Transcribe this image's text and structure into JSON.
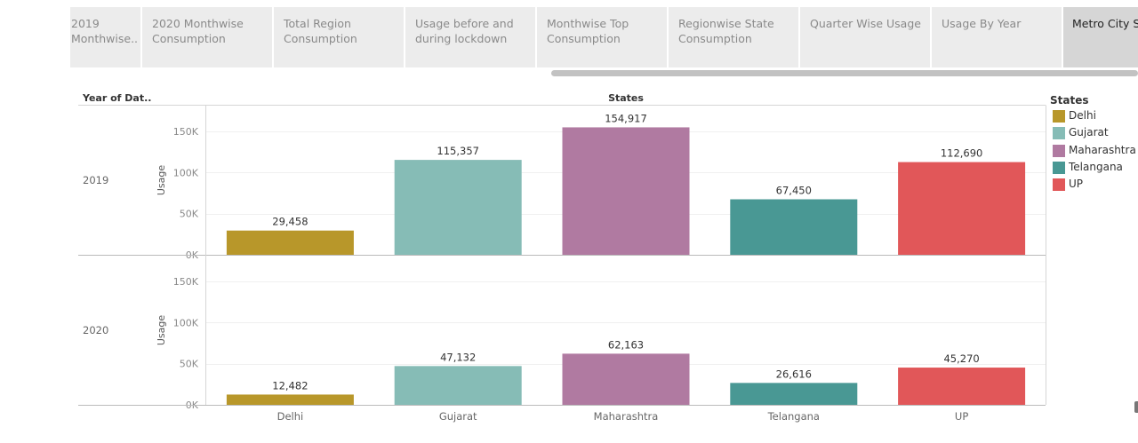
{
  "tabs": [
    {
      "label": "2019 Monthwise.."
    },
    {
      "label": "2020 Monthwise Consumption"
    },
    {
      "label": "Total Region Consumption"
    },
    {
      "label": "Usage before and during lockdown"
    },
    {
      "label": "Monthwise Top Consumption"
    },
    {
      "label": "Regionwise State Consumption"
    },
    {
      "label": "Quarter Wise Usage"
    },
    {
      "label": "Usage By Year"
    },
    {
      "label": "Metro City S"
    }
  ],
  "legend": {
    "title": "States",
    "items": [
      {
        "label": "Delhi",
        "color": "#b8972a"
      },
      {
        "label": "Gujarat",
        "color": "#86bcb6"
      },
      {
        "label": "Maharashtra",
        "color": "#b07aa1"
      },
      {
        "label": "Telangana",
        "color": "#499894"
      },
      {
        "label": "UP",
        "color": "#e15759"
      }
    ]
  },
  "chart_data": {
    "type": "bar",
    "column_header": "States",
    "row_header": "Year of Dat..",
    "ylabel": "Usage",
    "ylim": [
      0,
      175000
    ],
    "yticks": [
      {
        "value": 0,
        "label": "0K"
      },
      {
        "value": 50000,
        "label": "50K"
      },
      {
        "value": 100000,
        "label": "100K"
      },
      {
        "value": 150000,
        "label": "150K"
      }
    ],
    "categories": [
      "Delhi",
      "Gujarat",
      "Maharashtra",
      "Telangana",
      "UP"
    ],
    "colors": [
      "#b8972a",
      "#86bcb6",
      "#b07aa1",
      "#499894",
      "#e15759"
    ],
    "panels": [
      {
        "year": "2019",
        "values": [
          29458,
          115357,
          154917,
          67450,
          112690
        ],
        "labels": [
          "29,458",
          "115,357",
          "154,917",
          "67,450",
          "112,690"
        ]
      },
      {
        "year": "2020",
        "values": [
          12482,
          47132,
          62163,
          26616,
          45270
        ],
        "labels": [
          "12,482",
          "47,132",
          "62,163",
          "26,616",
          "45,270"
        ]
      }
    ]
  }
}
